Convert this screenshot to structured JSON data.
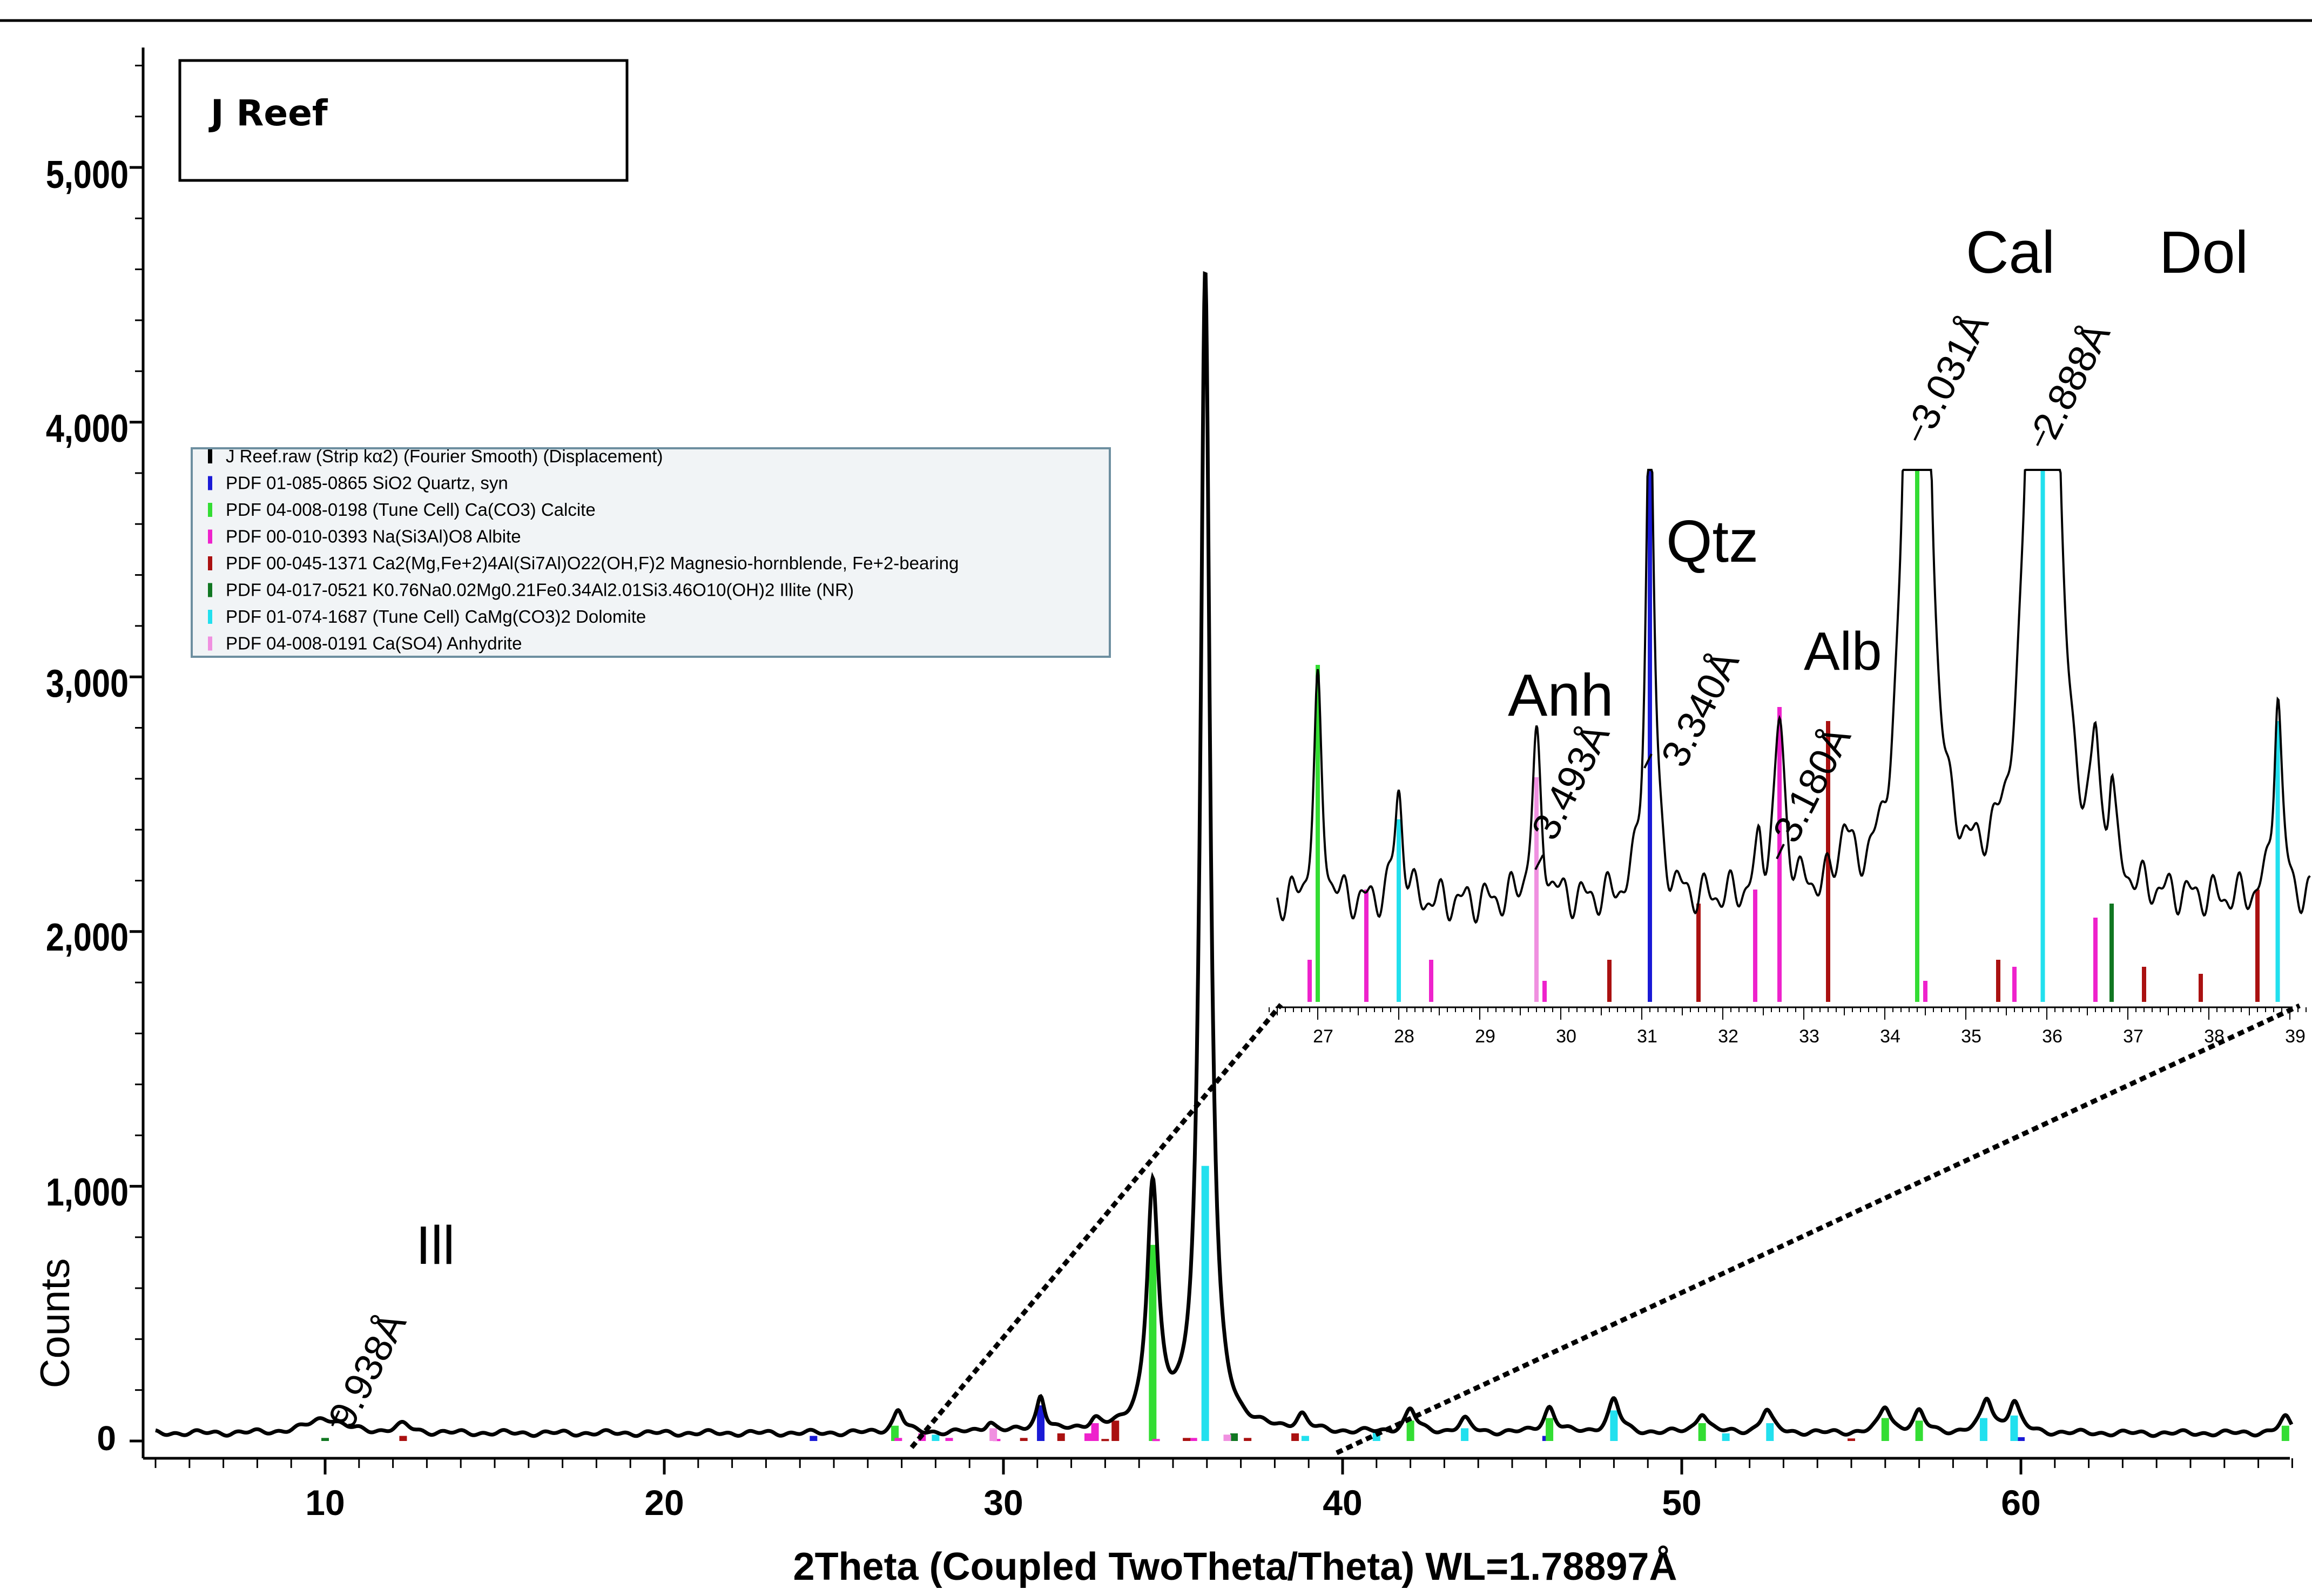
{
  "sample_box": {
    "title": "J Reef"
  },
  "legend": {
    "items": [
      {
        "label": "J Reef.raw (Strip kα2) (Fourier Smooth) (Displacement)",
        "color": "#000000"
      },
      {
        "label": "PDF 01-085-0865 SiO2 Quartz, syn",
        "color": "#1a1ad6"
      },
      {
        "label": "PDF 04-008-0198 (Tune Cell) Ca(CO3) Calcite",
        "color": "#33dd33"
      },
      {
        "label": "PDF 00-010-0393 Na(Si3Al)O8 Albite",
        "color": "#ee22cc"
      },
      {
        "label": "PDF 00-045-1371 Ca2(Mg,Fe+2)4Al(Si7Al)O22(OH,F)2 Magnesio-hornblende, Fe+2-bearing",
        "color": "#aa1111"
      },
      {
        "label": "PDF 04-017-0521 K0.76Na0.02Mg0.21Fe0.34Al2.01Si3.46O10(OH)2 Illite (NR)",
        "color": "#117722"
      },
      {
        "label": "PDF 01-074-1687 (Tune Cell) CaMg(CO3)2 Dolomite",
        "color": "#22e0ee"
      },
      {
        "label": "PDF 04-008-0191 Ca(SO4) Anhydrite",
        "color": "#f090e0"
      }
    ]
  },
  "axes": {
    "xlabel": "2Theta (Coupled TwoTheta/Theta) WL=1.78897Å",
    "ylabel": "Counts",
    "x_ticks": [
      "10",
      "20",
      "30",
      "40",
      "50",
      "60"
    ],
    "y_ticks": [
      "0",
      "1,000",
      "2,000",
      "3,000",
      "4,000",
      "5,000"
    ]
  },
  "annotations": {
    "main": [
      {
        "phase": "Ill",
        "d": "9.938Å",
        "x": 10.0
      }
    ],
    "inset": [
      {
        "phase": "Anh",
        "d": "3.493Å",
        "x": 29.7
      },
      {
        "phase": "Qtz",
        "d": "3.340Å",
        "x": 31.1
      },
      {
        "phase": "Alb",
        "d": "3.180Å",
        "x": 32.7
      },
      {
        "phase": "Cal",
        "d": "3.031Å",
        "x": 34.4
      },
      {
        "phase": "Dol",
        "d": "2.888Å",
        "x": 35.9
      }
    ],
    "inset_ticks": [
      "27",
      "28",
      "29",
      "30",
      "31",
      "32",
      "33",
      "34",
      "35",
      "36",
      "37",
      "38",
      "39"
    ]
  },
  "colors": {
    "quartz": "#1a1ad6",
    "calcite": "#33dd33",
    "albite": "#ee22cc",
    "hornblende": "#aa1111",
    "illite": "#117722",
    "dolomite": "#22e0ee",
    "anhydrite": "#f090e0",
    "pattern": "#000000"
  },
  "chart_data": {
    "type": "line",
    "title": "J Reef",
    "xlabel": "2Theta (Coupled TwoTheta/Theta) WL=1.78897Å",
    "ylabel": "Counts",
    "xlim": [
      5,
      68
    ],
    "ylim": [
      0,
      5500
    ],
    "grid": false,
    "legend_position": "upper-left",
    "background": 30,
    "peaks": [
      {
        "x": 10.0,
        "y": 60,
        "w": 0.6
      },
      {
        "x": 12.3,
        "y": 30,
        "w": 0.3
      },
      {
        "x": 26.9,
        "y": 90,
        "w": 0.18
      },
      {
        "x": 29.6,
        "y": 40,
        "w": 0.18
      },
      {
        "x": 31.1,
        "y": 140,
        "w": 0.15
      },
      {
        "x": 32.7,
        "y": 40,
        "w": 0.2
      },
      {
        "x": 34.4,
        "y": 950,
        "w": 0.2
      },
      {
        "x": 35.95,
        "y": 4550,
        "w": 0.17
      },
      {
        "x": 38.8,
        "y": 60,
        "w": 0.2
      },
      {
        "x": 42.0,
        "y": 90,
        "w": 0.2
      },
      {
        "x": 43.6,
        "y": 50,
        "w": 0.2
      },
      {
        "x": 46.1,
        "y": 100,
        "w": 0.2
      },
      {
        "x": 48.0,
        "y": 130,
        "w": 0.2
      },
      {
        "x": 50.6,
        "y": 80,
        "w": 0.2
      },
      {
        "x": 52.5,
        "y": 90,
        "w": 0.2
      },
      {
        "x": 56.0,
        "y": 100,
        "w": 0.2
      },
      {
        "x": 57.0,
        "y": 80,
        "w": 0.2
      },
      {
        "x": 59.0,
        "y": 130,
        "w": 0.2
      },
      {
        "x": 59.8,
        "y": 120,
        "w": 0.2
      },
      {
        "x": 67.8,
        "y": 60,
        "w": 0.2
      }
    ],
    "reference_sticks": [
      {
        "phase": "quartz",
        "x": [
          31.1,
          24.4,
          46.0,
          60.0
        ],
        "y": [
          140,
          20,
          20,
          15
        ]
      },
      {
        "phase": "calcite",
        "x": [
          26.8,
          34.4,
          42.0,
          46.1,
          50.6,
          56.0,
          57.0,
          67.8
        ],
        "y": [
          60,
          770,
          80,
          90,
          70,
          90,
          80,
          60
        ]
      },
      {
        "phase": "albite",
        "x": [
          26.9,
          27.6,
          28.4,
          29.8,
          32.5,
          32.7,
          34.5,
          35.6
        ],
        "y": [
          12,
          30,
          12,
          8,
          30,
          70,
          8,
          12
        ]
      },
      {
        "phase": "hornblende",
        "x": [
          12.3,
          30.6,
          31.7,
          33.3,
          35.4,
          37.2,
          38.6,
          33.0,
          55.0
        ],
        "y": [
          20,
          12,
          30,
          80,
          12,
          12,
          30,
          8,
          10
        ]
      },
      {
        "phase": "illite",
        "x": [
          36.8,
          10.0
        ],
        "y": [
          30,
          12
        ]
      },
      {
        "phase": "dolomite",
        "x": [
          28.0,
          35.95,
          38.9,
          41.0,
          43.6,
          48.0,
          51.3,
          52.6,
          58.9,
          59.8
        ],
        "y": [
          25,
          1080,
          20,
          40,
          50,
          120,
          30,
          70,
          90,
          100
        ]
      },
      {
        "phase": "anhydrite",
        "x": [
          29.7,
          36.6
        ],
        "y": [
          50,
          25
        ]
      }
    ],
    "inset": {
      "xlim": [
        26.3,
        39.3
      ],
      "ylim_counts": [
        0,
        600
      ],
      "zoom_source_range": [
        27.8,
        39.2
      ]
    }
  }
}
